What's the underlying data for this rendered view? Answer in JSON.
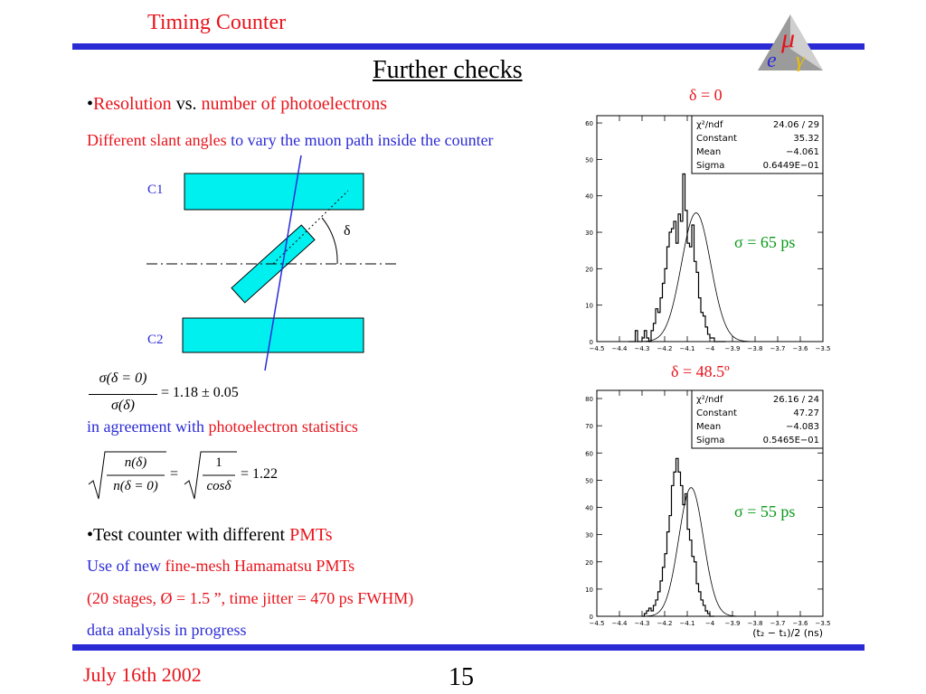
{
  "header": {
    "title": "Timing Counter"
  },
  "slide_title": "Further checks",
  "bullet1": {
    "marker": "•",
    "part1": "Resolution",
    "part2": " vs. ",
    "part3": "number of photoelectrons"
  },
  "slant": {
    "red_text": "Different slant angles",
    "blue_text": " to vary the muon path inside the counter"
  },
  "diagram": {
    "c1": "C1",
    "c2": "C2",
    "delta": "δ"
  },
  "formula1": {
    "num": "σ(δ = 0)",
    "den": "σ(δ)",
    "rhs": "= 1.18 ± 0.05"
  },
  "agreement": {
    "blue": "in agreement with ",
    "red": "photoelectron statistics"
  },
  "formula2": {
    "num1": "n(δ)",
    "den1": "n(δ = 0)",
    "eq": "=",
    "num2": "1",
    "den2": "cosδ",
    "rhs": "= 1.22"
  },
  "bullet2": {
    "marker": "•",
    "text": "Test counter with different ",
    "red": "PMTs"
  },
  "pmt": {
    "line1_blue": "Use of new ",
    "line1_red": "fine-mesh Hamamatsu PMTs",
    "line2": "(20 stages, Ø = 1.5 ”, time jitter = 470 ps FWHM)",
    "line3": "data analysis in progress"
  },
  "chart_data": [
    {
      "type": "bar",
      "title": "δ = 0",
      "annotation": "σ = 65 ps",
      "stats": [
        {
          "label": "χ²/ndf",
          "value": "24.06  /   29"
        },
        {
          "label": "Constant",
          "value": "35.32"
        },
        {
          "label": "Mean",
          "value": "−4.061"
        },
        {
          "label": "Sigma",
          "value": "0.6449E−01"
        }
      ],
      "xlim": [
        -4.5,
        -3.5
      ],
      "ylim": [
        0,
        62
      ],
      "xticks": [
        "−4.5",
        "−4.4",
        "−4.3",
        "−4.2",
        "−4.1",
        "−4",
        "−3.9",
        "−3.8",
        "−3.7",
        "−3.6",
        "−3.5"
      ],
      "yticks": [
        0,
        10,
        20,
        30,
        40,
        50,
        60
      ],
      "bin_start": -4.36,
      "bin_width": 0.01,
      "values": [
        0,
        0,
        0,
        3,
        0,
        0,
        1,
        3,
        1,
        0,
        3,
        5,
        9,
        8,
        12,
        16,
        20,
        26,
        30,
        31,
        33,
        27,
        35,
        33,
        46,
        36,
        27,
        26,
        32,
        22,
        19,
        12,
        8,
        7,
        4,
        2,
        1,
        1,
        0,
        0,
        0,
        0,
        0
      ],
      "fit": {
        "constant": 35.32,
        "mean": -4.061,
        "sigma": 0.06449
      }
    },
    {
      "type": "bar",
      "title": "δ = 48.5º",
      "annotation": "σ = 55 ps",
      "xlabel": "(t₂ − t₁)/2 (ns)",
      "stats": [
        {
          "label": "χ²/ndf",
          "value": "26.16  /   24"
        },
        {
          "label": "Constant",
          "value": "47.27"
        },
        {
          "label": "Mean",
          "value": "−4.083"
        },
        {
          "label": "Sigma",
          "value": "0.5465E−01"
        }
      ],
      "xlim": [
        -4.5,
        -3.5
      ],
      "ylim": [
        0,
        83
      ],
      "xticks": [
        "−4.5",
        "−4.4",
        "−4.3",
        "−4.2",
        "−4.1",
        "−4",
        "−3.9",
        "−3.8",
        "−3.7",
        "−3.6",
        "−3.5"
      ],
      "yticks": [
        0,
        10,
        20,
        30,
        40,
        50,
        60,
        70,
        80
      ],
      "bin_start": -4.3,
      "bin_width": 0.01,
      "values": [
        0,
        1,
        2,
        3,
        2,
        4,
        6,
        9,
        13,
        18,
        23,
        31,
        37,
        48,
        53,
        58,
        53,
        48,
        41,
        45,
        32,
        28,
        22,
        20,
        12,
        9,
        6,
        4,
        2,
        1,
        0,
        0
      ],
      "fit": {
        "constant": 47.27,
        "mean": -4.083,
        "sigma": 0.05465
      }
    }
  ],
  "footer": {
    "date": "July 16th 2002",
    "page": "15"
  },
  "colors": {
    "rule": "#2b2bd6",
    "scintillator": "#00f0f0",
    "title_red": "#e8141c",
    "blue_text": "#2b2bd6",
    "green_text": "#0a9a1a"
  }
}
